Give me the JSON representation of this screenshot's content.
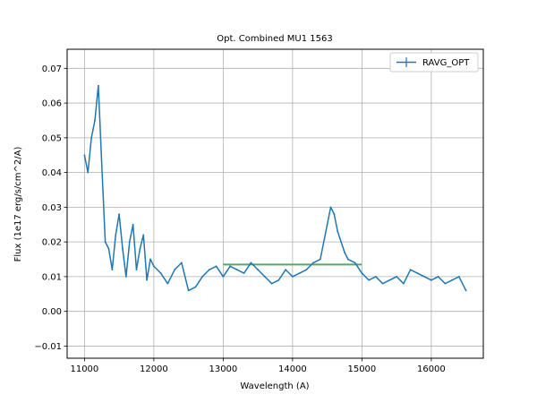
{
  "chart_data": {
    "type": "line",
    "title": "Opt. Combined MU1 1563",
    "xlabel": "Wavelength (A)",
    "ylabel": "Flux (1e17 erg/s/cm^2/A)",
    "xlim": [
      10750,
      16750
    ],
    "ylim": [
      -0.0135,
      0.0755
    ],
    "xticks": [
      11000,
      12000,
      13000,
      14000,
      15000,
      16000
    ],
    "yticks": [
      -0.01,
      0.0,
      0.01,
      0.02,
      0.03,
      0.04,
      0.05,
      0.06,
      0.07
    ],
    "ytick_labels": [
      "−0.01",
      "0.00",
      "0.01",
      "0.02",
      "0.03",
      "0.04",
      "0.05",
      "0.06",
      "0.07"
    ],
    "grid": true,
    "legend_position": "top-right",
    "series": [
      {
        "name": "RAVG_OPT",
        "color": "#1f77b4",
        "x": [
          11000,
          11050,
          11100,
          11150,
          11200,
          11250,
          11300,
          11350,
          11400,
          11450,
          11500,
          11550,
          11600,
          11650,
          11700,
          11750,
          11800,
          11850,
          11900,
          11950,
          12000,
          12100,
          12200,
          12300,
          12400,
          12500,
          12600,
          12700,
          12800,
          12900,
          13000,
          13100,
          13200,
          13300,
          13400,
          13500,
          13600,
          13700,
          13800,
          13900,
          14000,
          14100,
          14200,
          14300,
          14400,
          14500,
          14550,
          14600,
          14650,
          14700,
          14750,
          14800,
          14900,
          15000,
          15100,
          15200,
          15300,
          15400,
          15500,
          15600,
          15700,
          15800,
          15900,
          16000,
          16100,
          16200,
          16300,
          16400,
          16500
        ],
        "values": [
          0.045,
          0.04,
          0.05,
          0.055,
          0.065,
          0.042,
          0.02,
          0.018,
          0.012,
          0.022,
          0.028,
          0.018,
          0.01,
          0.02,
          0.025,
          0.012,
          0.018,
          0.022,
          0.009,
          0.015,
          0.013,
          0.011,
          0.008,
          0.012,
          0.014,
          0.006,
          0.007,
          0.01,
          0.012,
          0.013,
          0.01,
          0.013,
          0.012,
          0.011,
          0.014,
          0.012,
          0.01,
          0.008,
          0.009,
          0.012,
          0.01,
          0.011,
          0.012,
          0.014,
          0.015,
          0.025,
          0.03,
          0.028,
          0.023,
          0.02,
          0.017,
          0.015,
          0.014,
          0.011,
          0.009,
          0.01,
          0.008,
          0.009,
          0.01,
          0.008,
          0.012,
          0.011,
          0.01,
          0.009,
          0.01,
          0.008,
          0.009,
          0.01,
          0.006
        ]
      }
    ],
    "overlay_series": [
      {
        "color": "#55a868",
        "x": [
          13000,
          15000
        ],
        "values": [
          0.0135,
          0.0135
        ]
      }
    ]
  }
}
